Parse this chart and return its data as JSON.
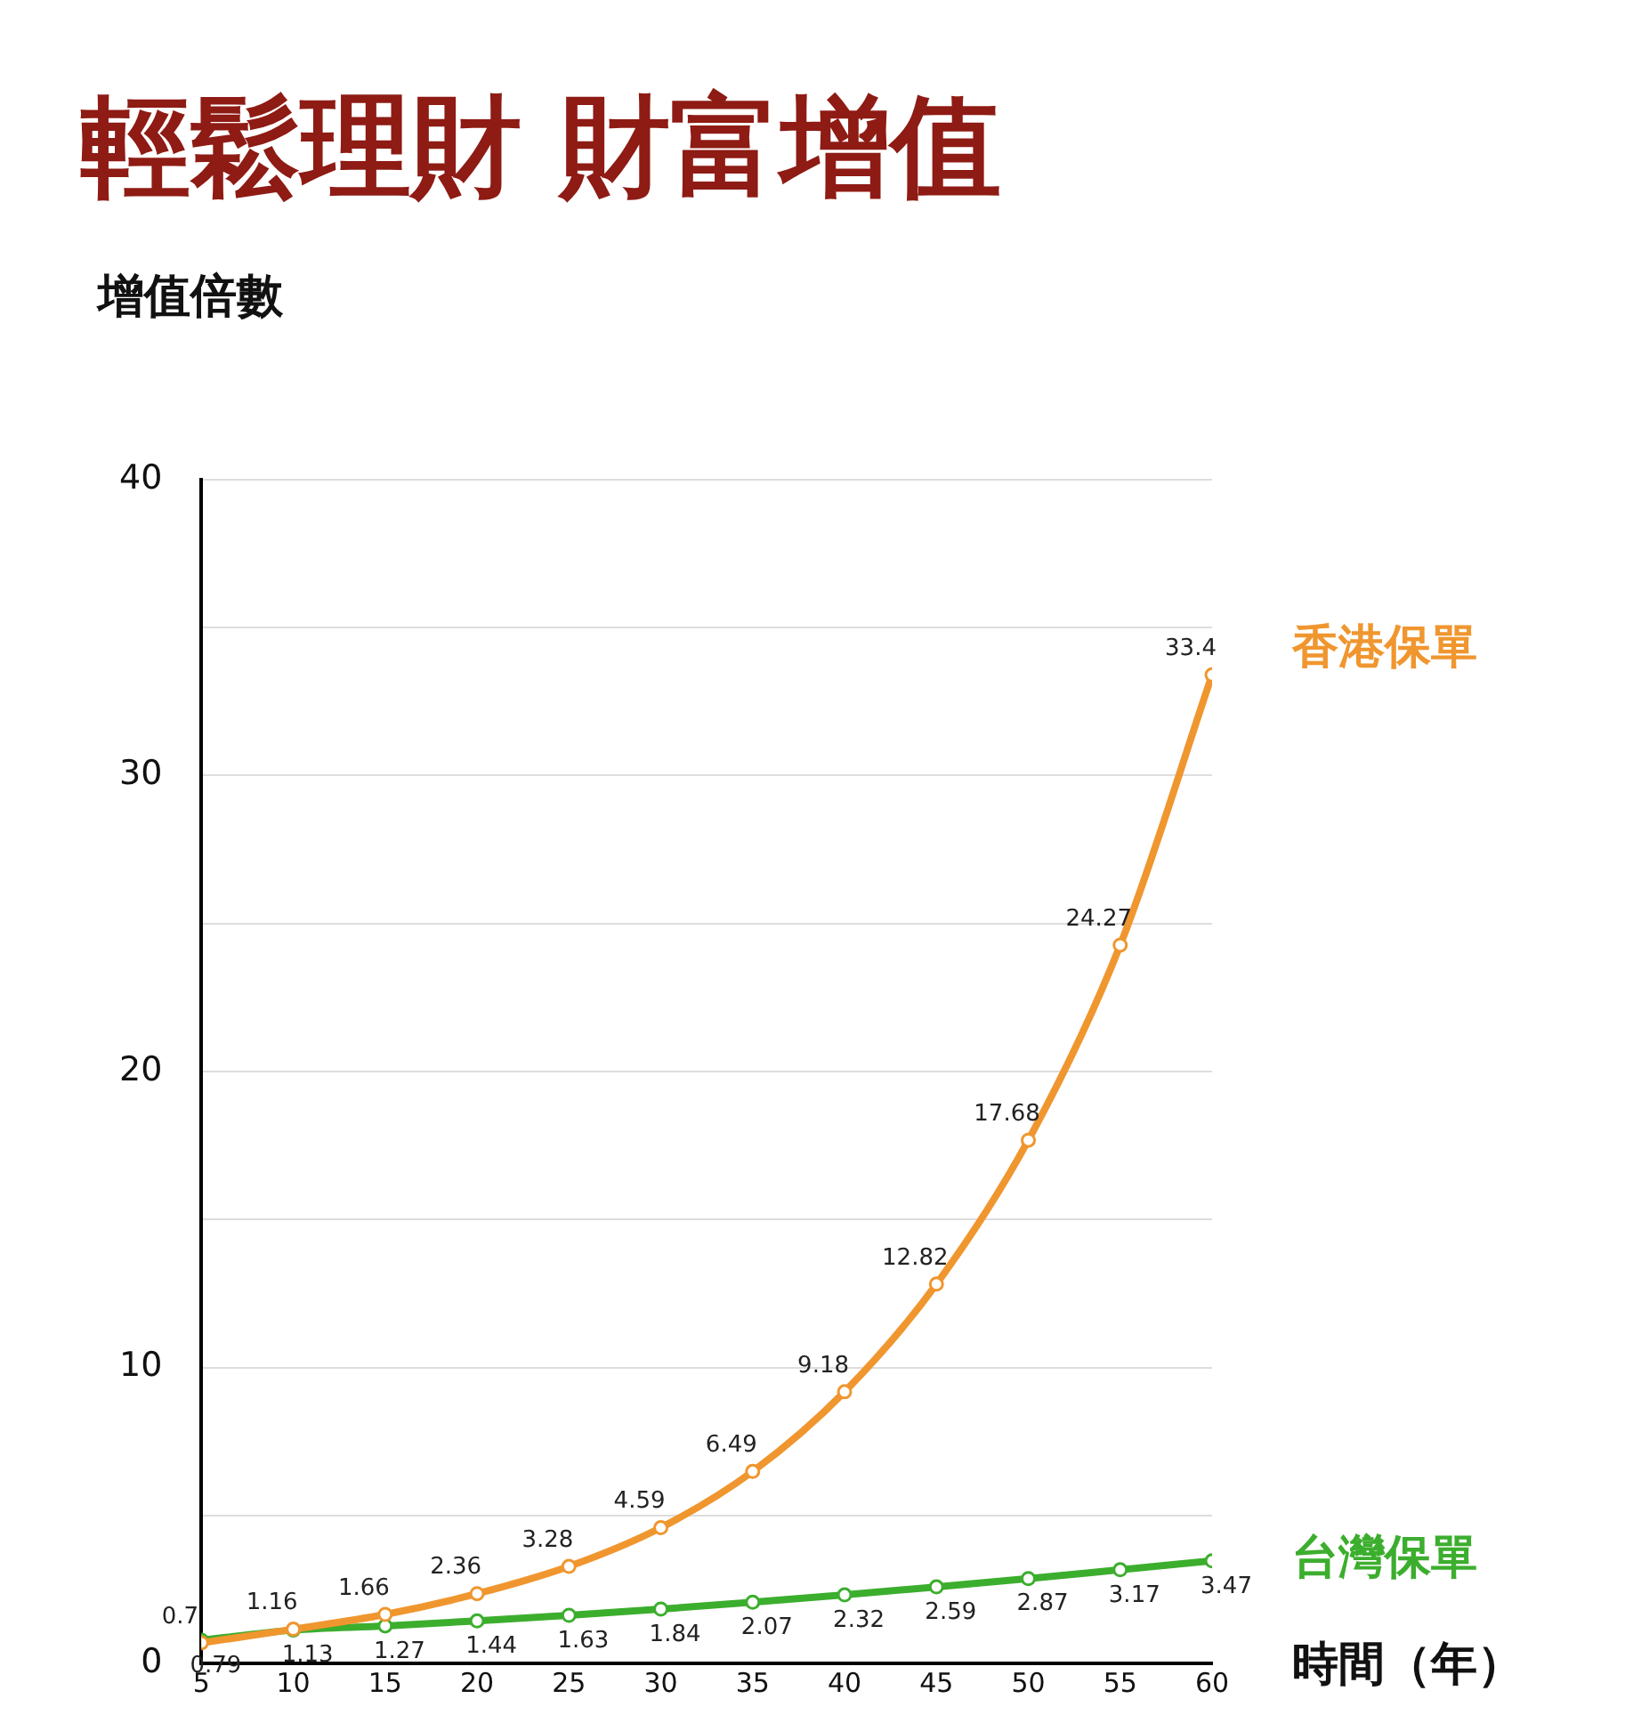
{
  "chart_data": {
    "type": "line",
    "title": "輕鬆理財 財富增值",
    "ylabel": "增值倍數",
    "xlabel": "時間（年）",
    "x": [
      5,
      10,
      15,
      20,
      25,
      30,
      35,
      40,
      45,
      50,
      55,
      60
    ],
    "series": [
      {
        "name": "香港保單",
        "color": "#f0962f",
        "values": [
          0.7,
          1.16,
          1.66,
          2.36,
          3.28,
          4.59,
          6.49,
          9.18,
          12.82,
          17.68,
          24.27,
          33.4
        ]
      },
      {
        "name": "台灣保單",
        "color": "#3cae2e",
        "values": [
          0.79,
          1.13,
          1.27,
          1.44,
          1.63,
          1.84,
          2.07,
          2.32,
          2.59,
          2.87,
          3.17,
          3.47
        ]
      }
    ],
    "xlim": [
      5,
      60
    ],
    "xticks": [
      5,
      10,
      15,
      20,
      25,
      30,
      35,
      40,
      45,
      50,
      55,
      60
    ],
    "ylim": [
      0,
      40
    ],
    "yticks": [
      0,
      {
        "value": 5,
        "label": null
      },
      10,
      {
        "value": 15,
        "label": null
      },
      20,
      {
        "value": 25,
        "label": null
      },
      30,
      {
        "value": 35,
        "label": null
      },
      40
    ],
    "grid": "y",
    "marker": "circle",
    "line_style": "solid",
    "data_labels": true,
    "legend": false
  }
}
